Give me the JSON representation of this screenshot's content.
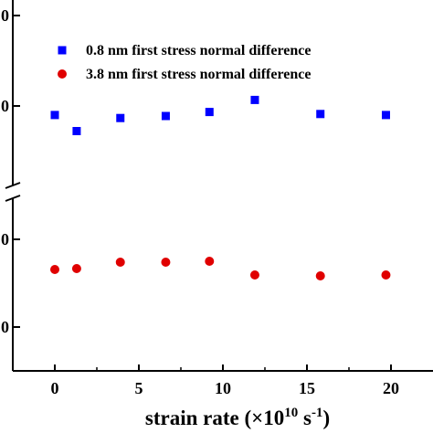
{
  "chart_data": {
    "type": "scatter",
    "xlabel_main": "strain rate (×10",
    "xlabel_exp": "10",
    "xlabel_unit": " s",
    "xlabel_unit_exp": "-1",
    "xlabel_close": ")",
    "xlim": [
      -1.5,
      22.5
    ],
    "xticks": [
      0,
      5,
      10,
      15,
      20
    ],
    "x_tick_labels": [
      "0",
      "5",
      "10",
      "15",
      "20"
    ],
    "y_tick_labels": [
      "0",
      "0",
      "0",
      "0"
    ],
    "broken_y_axis": true,
    "legend_position": "top-right",
    "grid": false,
    "series": [
      {
        "name": "0.8 nm first stress normal difference",
        "marker": "square",
        "color": "#0000ff",
        "x": [
          0,
          1.3,
          3.9,
          6.6,
          9.2,
          11.9,
          15.8,
          19.7
        ],
        "rel_y": [
          0.955,
          0.875,
          0.94,
          0.95,
          0.97,
          1.03,
          0.96,
          0.955
        ]
      },
      {
        "name": "3.8 nm first stress normal difference",
        "marker": "circle",
        "color": "#e00000",
        "x": [
          0,
          1.3,
          3.9,
          6.6,
          9.2,
          11.9,
          15.8,
          19.7
        ],
        "rel_y": [
          0.93,
          0.935,
          0.97,
          0.97,
          0.975,
          0.9,
          0.895,
          0.9
        ]
      }
    ]
  }
}
